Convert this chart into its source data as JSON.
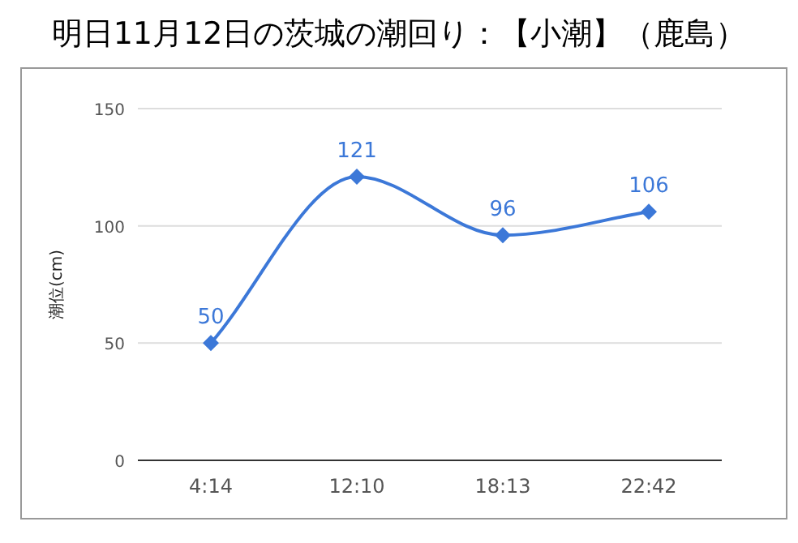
{
  "chart_data": {
    "type": "line",
    "title": "明日11月12日の茨城の潮回り：【小潮】（鹿島）",
    "ylabel": "潮位(cm)",
    "categories": [
      "4:14",
      "12:10",
      "18:13",
      "22:42"
    ],
    "series": [
      {
        "color": "#3c78d8",
        "values": [
          50,
          121,
          96,
          106
        ]
      }
    ],
    "ylim": [
      0,
      150
    ],
    "yticks": [
      0,
      50,
      100,
      150
    ],
    "grid": "y",
    "marker": "diamond",
    "line_style": "solid",
    "data_labels": true
  }
}
